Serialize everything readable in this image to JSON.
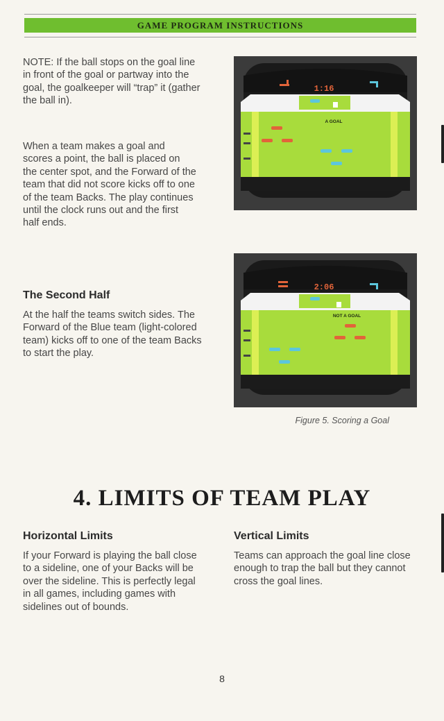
{
  "header": {
    "title": "GAME PROGRAM INSTRUCTIONS"
  },
  "note_paragraph": "NOTE: If the ball stops on the goal line in front of the goal or partway into the goal, the goalkeeper will “trap” it (gather the ball in).",
  "scoring_paragraph": "When a team makes a goal and scores a point, the ball is placed on the center spot, and the Forward of the team that did not score kicks off to one of the team Backs. The play continues until the clock runs out and the first half ends.",
  "second_half": {
    "heading": "The Second Half",
    "body": "At the half the teams switch sides. The Forward of the Blue team (light-colored team) kicks off to one of the team Backs to start the play."
  },
  "screen1": {
    "left_score": "4",
    "clock": "1:16",
    "right_score": "7",
    "label": "A GOAL"
  },
  "screen2": {
    "left_score": "3",
    "clock": "2:06",
    "right_score": "7",
    "label": "NOT A GOAL"
  },
  "figure_caption": "Figure 5. Scoring a Goal",
  "section": {
    "title": "4. LIMITS OF TEAM PLAY"
  },
  "horizontal_limits": {
    "heading": "Horizontal Limits",
    "body": "If your Forward is playing the ball close to a sideline, one of your Backs will be over the sideline. This is perfectly legal in all games, including games with sidelines out of bounds."
  },
  "vertical_limits": {
    "heading": "Vertical Limits",
    "body": "Teams can approach the goal line close enough to trap the ball but they cannot cross the goal lines."
  },
  "page_number": "8",
  "colors": {
    "banner": "#6fbe2f",
    "field": "#a8dc3c",
    "red_team": "#e2643a",
    "blue_team": "#5cc6dc"
  }
}
